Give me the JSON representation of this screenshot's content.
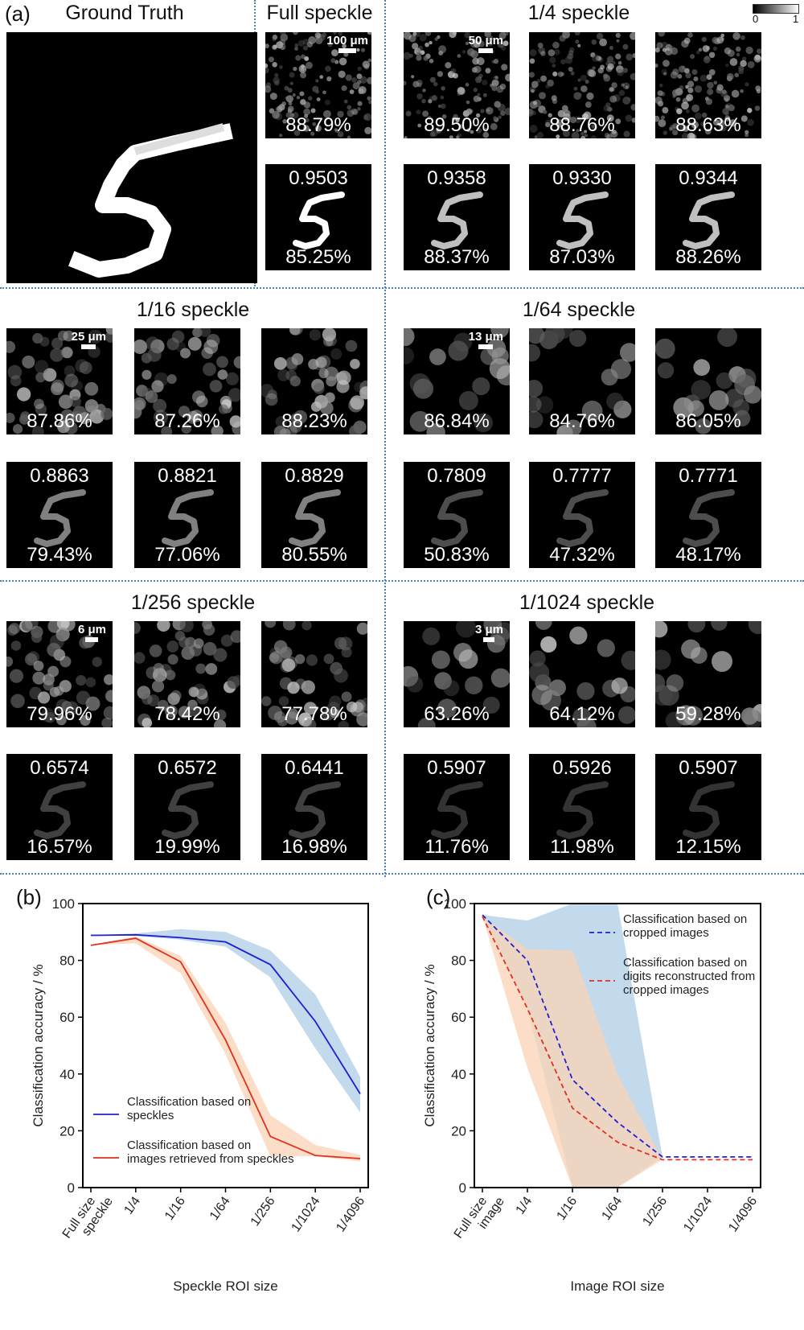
{
  "panel_labels": {
    "a": "(a)",
    "b": "(b)",
    "c": "(c)"
  },
  "titles": {
    "ground_truth": "Ground Truth",
    "full": "Full speckle",
    "q4": "1/4 speckle",
    "q16": "1/16 speckle",
    "q64": "1/64 speckle",
    "q256": "1/256 speckle",
    "q1024": "1/1024 speckle"
  },
  "colorbar": {
    "min": "0",
    "max": "1"
  },
  "scalebars": {
    "full": "100 μm",
    "q4": "50 μm",
    "q16": "25 μm",
    "q64": "13 μm",
    "q256": "6 μm",
    "q1024": "3 μm"
  },
  "groups": {
    "full": {
      "speckle_acc": [
        "88.79%"
      ],
      "recon_corr": [
        "0.9503"
      ],
      "recon_acc": [
        "85.25%"
      ]
    },
    "q4": {
      "speckle_acc": [
        "89.50%",
        "88.76%",
        "88.63%"
      ],
      "recon_corr": [
        "0.9358",
        "0.9330",
        "0.9344"
      ],
      "recon_acc": [
        "88.37%",
        "87.03%",
        "88.26%"
      ]
    },
    "q16": {
      "speckle_acc": [
        "87.86%",
        "87.26%",
        "88.23%"
      ],
      "recon_corr": [
        "0.8863",
        "0.8821",
        "0.8829"
      ],
      "recon_acc": [
        "79.43%",
        "77.06%",
        "80.55%"
      ]
    },
    "q64": {
      "speckle_acc": [
        "86.84%",
        "84.76%",
        "86.05%"
      ],
      "recon_corr": [
        "0.7809",
        "0.7777",
        "0.7771"
      ],
      "recon_acc": [
        "50.83%",
        "47.32%",
        "48.17%"
      ]
    },
    "q256": {
      "speckle_acc": [
        "79.96%",
        "78.42%",
        "77.78%"
      ],
      "recon_corr": [
        "0.6574",
        "0.6572",
        "0.6441"
      ],
      "recon_acc": [
        "16.57%",
        "19.99%",
        "16.98%"
      ]
    },
    "q1024": {
      "speckle_acc": [
        "63.26%",
        "64.12%",
        "59.28%"
      ],
      "recon_corr": [
        "0.5907",
        "0.5926",
        "0.5907"
      ],
      "recon_acc": [
        "11.76%",
        "11.98%",
        "12.15%"
      ]
    }
  },
  "chart_data": [
    {
      "type": "line",
      "panel": "(b)",
      "categories": [
        "Full size speckle",
        "1/4",
        "1/16",
        "1/64",
        "1/256",
        "1/1024",
        "1/4096"
      ],
      "xlabel": "Speckle ROI size",
      "ylabel": "Classification accuracy / %",
      "ylim": [
        0,
        100
      ],
      "yticks": [
        0,
        20,
        40,
        60,
        80,
        100
      ],
      "legend_position": "lower-left",
      "series": [
        {
          "name": "Classification based on speckles",
          "color": "#1f1fd0",
          "style": "solid",
          "values": [
            88.8,
            89.0,
            88.0,
            86.5,
            78.5,
            58.5,
            33.0
          ],
          "band_low": [
            88.8,
            88.6,
            87.3,
            84.8,
            74.0,
            49.0,
            26.5
          ],
          "band_high": [
            88.8,
            89.5,
            91.0,
            90.0,
            83.5,
            68.0,
            39.0
          ],
          "band_color": "#aecde6"
        },
        {
          "name": "Classification based on images retrieved from speckles",
          "color": "#e03020",
          "style": "solid",
          "values": [
            85.3,
            87.8,
            79.5,
            52.0,
            18.0,
            11.3,
            10.2
          ],
          "band_low": [
            85.3,
            86.0,
            75.5,
            47.0,
            11.0,
            11.0,
            9.2
          ],
          "band_high": [
            85.3,
            88.4,
            81.5,
            58.0,
            25.5,
            15.0,
            11.5
          ],
          "band_color": "#fbd3b6"
        }
      ]
    },
    {
      "type": "line",
      "panel": "(c)",
      "categories": [
        "Full size image",
        "1/4",
        "1/16",
        "1/64",
        "1/256",
        "1/1024",
        "1/4096"
      ],
      "xlabel": "Image ROI size",
      "ylabel": "Classification accuracy / %",
      "ylim": [
        0,
        100
      ],
      "yticks": [
        0,
        20,
        40,
        60,
        80,
        100
      ],
      "legend_position": "upper-right",
      "series": [
        {
          "name": "Classification based on cropped images",
          "color": "#1f1fd0",
          "style": "dashed",
          "values": [
            96.0,
            80.0,
            38.0,
            23.0,
            10.8,
            10.8,
            10.8
          ],
          "band_low": [
            96.0,
            63.0,
            0,
            0,
            10.8,
            10.8,
            10.8
          ],
          "band_high": [
            96.0,
            94.0,
            100,
            100,
            10.8,
            10.8,
            10.8
          ],
          "band_color": "#aecde6"
        },
        {
          "name": "Classification based on digits reconstructed from cropped images",
          "color": "#e03020",
          "style": "dashed",
          "values": [
            95.5,
            63.0,
            28.0,
            16.0,
            9.8,
            9.8,
            9.8
          ],
          "band_low": [
            95.5,
            42.0,
            0,
            0,
            9.8,
            9.8,
            9.8
          ],
          "band_high": [
            95.5,
            84.0,
            83.5,
            40.0,
            9.8,
            9.8,
            9.8
          ],
          "band_color": "#fbd3b6"
        }
      ]
    }
  ]
}
